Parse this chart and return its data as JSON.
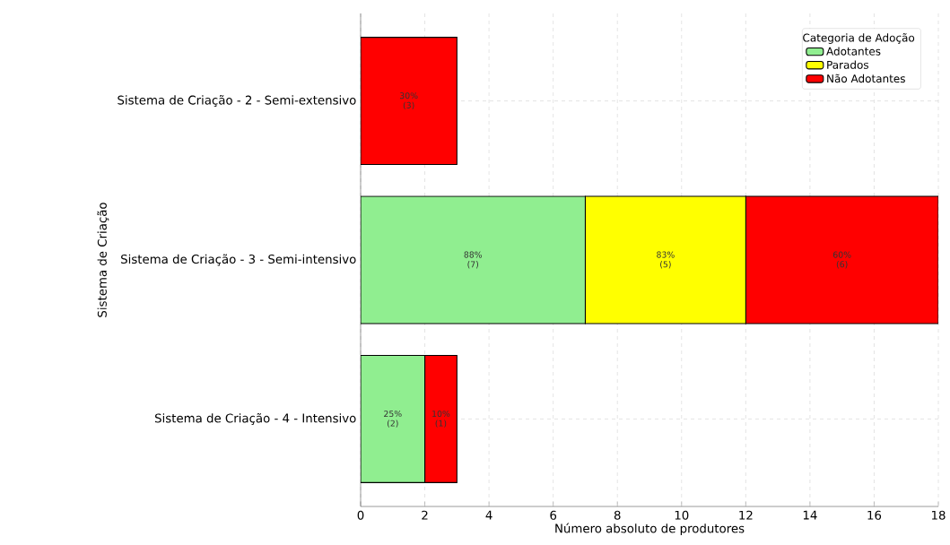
{
  "chart_data": {
    "type": "bar",
    "orientation": "horizontal",
    "stacked": true,
    "xlabel": "Número absoluto de produtores",
    "ylabel": "Sistema de Criação",
    "legend_title": "Categoria de Adoção",
    "categories": [
      "Sistema de Criação - 2 - Semi-extensivo",
      "Sistema de Criação - 3 - Semi-intensivo",
      "Sistema de Criação - 4 - Intensivo"
    ],
    "series": [
      {
        "name": "Adotantes",
        "color": "#90ee90",
        "values": [
          0,
          7,
          2
        ],
        "value_labels": [
          null,
          "88% (7)",
          "25% (2)"
        ]
      },
      {
        "name": "Parados",
        "color": "#ffff00",
        "values": [
          0,
          5,
          0
        ],
        "value_labels": [
          null,
          "83% (5)",
          null
        ]
      },
      {
        "name": "Não Adotantes",
        "color": "#ff0000",
        "values": [
          3,
          6,
          1
        ],
        "value_labels": [
          "30% (3)",
          "60% (6)",
          "10% (1)"
        ]
      }
    ],
    "xlim": [
      0,
      18
    ],
    "xticks": [
      0,
      2,
      4,
      6,
      8,
      10,
      12,
      14,
      16,
      18
    ],
    "grid": true,
    "legend": "top right"
  }
}
